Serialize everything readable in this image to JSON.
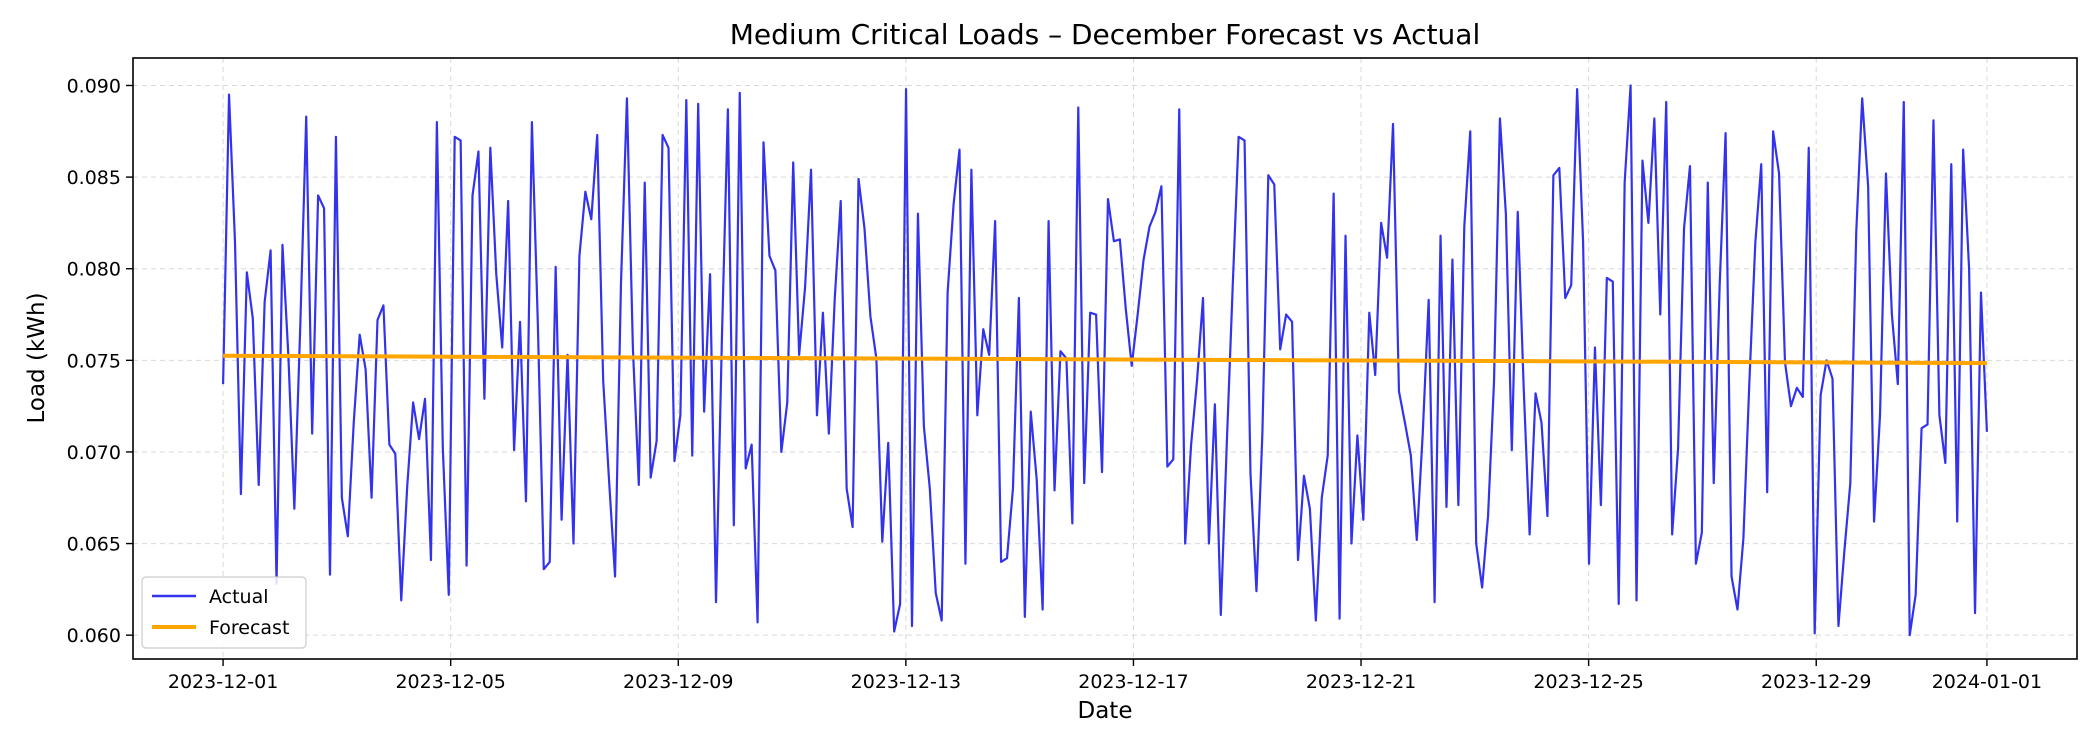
{
  "chart_data": {
    "type": "line",
    "title": "Medium Critical Loads – December Forecast vs Actual",
    "xlabel": "Date",
    "ylabel": "Load (kWh)",
    "x_start": "2023-12-01",
    "x_end": "2024-01-01",
    "xlim": [
      "2023-11-29T10:00",
      "2024-01-02T14:00"
    ],
    "ylim": [
      0.0587,
      0.0915
    ],
    "x_ticks": [
      "2023-12-01",
      "2023-12-05",
      "2023-12-09",
      "2023-12-13",
      "2023-12-17",
      "2023-12-21",
      "2023-12-25",
      "2023-12-29",
      "2024-01-01"
    ],
    "y_ticks": [
      0.06,
      0.065,
      0.07,
      0.075,
      0.08,
      0.085,
      0.09
    ],
    "y_tick_labels": [
      "0.060",
      "0.065",
      "0.070",
      "0.075",
      "0.080",
      "0.085",
      "0.090"
    ],
    "grid": true,
    "legend": "lower-left",
    "series": [
      {
        "name": "Actual",
        "color": "#3333ee",
        "values": [
          0.0737,
          0.0895,
          0.0815,
          0.0677,
          0.0798,
          0.0773,
          0.0682,
          0.0782,
          0.081,
          0.0628,
          0.0813,
          0.0752,
          0.0669,
          0.0769,
          0.0883,
          0.071,
          0.084,
          0.0833,
          0.0633,
          0.0872,
          0.0675,
          0.0654,
          0.0716,
          0.0764,
          0.0745,
          0.0675,
          0.0772,
          0.078,
          0.0704,
          0.0699,
          0.0619,
          0.0681,
          0.0727,
          0.0707,
          0.0729,
          0.0641,
          0.088,
          0.0702,
          0.0622,
          0.0872,
          0.087,
          0.0638,
          0.084,
          0.0864,
          0.0729,
          0.0866,
          0.0797,
          0.0757,
          0.0837,
          0.0701,
          0.0771,
          0.0673,
          0.088,
          0.077,
          0.0636,
          0.064,
          0.0801,
          0.0663,
          0.0753,
          0.065,
          0.0807,
          0.0842,
          0.0827,
          0.0873,
          0.0739,
          0.0684,
          0.0632,
          0.0792,
          0.0893,
          0.0757,
          0.0682,
          0.0847,
          0.0686,
          0.0706,
          0.0873,
          0.0866,
          0.0695,
          0.072,
          0.0892,
          0.0698,
          0.089,
          0.0722,
          0.0797,
          0.0618,
          0.0763,
          0.0887,
          0.066,
          0.0896,
          0.0691,
          0.0704,
          0.0607,
          0.0869,
          0.0807,
          0.0799,
          0.07,
          0.0727,
          0.0858,
          0.0753,
          0.079,
          0.0854,
          0.072,
          0.0776,
          0.071,
          0.0784,
          0.0837,
          0.068,
          0.0659,
          0.0849,
          0.0822,
          0.0774,
          0.0751,
          0.0651,
          0.0705,
          0.0602,
          0.0617,
          0.0898,
          0.0605,
          0.083,
          0.0714,
          0.068,
          0.0623,
          0.0608,
          0.0787,
          0.0835,
          0.0865,
          0.0639,
          0.0854,
          0.072,
          0.0767,
          0.0753,
          0.0826,
          0.064,
          0.0642,
          0.068,
          0.0784,
          0.061,
          0.0722,
          0.0685,
          0.0614,
          0.0826,
          0.0679,
          0.0755,
          0.0751,
          0.0661,
          0.0888,
          0.0683,
          0.0776,
          0.0775,
          0.0689,
          0.0838,
          0.0815,
          0.0816,
          0.0778,
          0.0747,
          0.0775,
          0.0805,
          0.0823,
          0.0831,
          0.0845,
          0.0692,
          0.0696,
          0.0887,
          0.065,
          0.0704,
          0.0739,
          0.0784,
          0.065,
          0.0726,
          0.0611,
          0.0704,
          0.079,
          0.0872,
          0.087,
          0.0688,
          0.0624,
          0.071,
          0.0851,
          0.0846,
          0.0756,
          0.0775,
          0.0771,
          0.0641,
          0.0687,
          0.0669,
          0.0608,
          0.0675,
          0.0698,
          0.0841,
          0.0609,
          0.0818,
          0.065,
          0.0709,
          0.0663,
          0.0776,
          0.0742,
          0.0825,
          0.0806,
          0.0879,
          0.0733,
          0.0716,
          0.0698,
          0.0652,
          0.071,
          0.0783,
          0.0618,
          0.0818,
          0.067,
          0.0805,
          0.0671,
          0.0823,
          0.0875,
          0.065,
          0.0626,
          0.0665,
          0.0738,
          0.0882,
          0.083,
          0.0701,
          0.0831,
          0.0735,
          0.0655,
          0.0732,
          0.0716,
          0.0665,
          0.0851,
          0.0855,
          0.0784,
          0.0791,
          0.0898,
          0.0815,
          0.0639,
          0.0757,
          0.0671,
          0.0795,
          0.0793,
          0.0617,
          0.0847,
          0.09,
          0.0619,
          0.0859,
          0.0825,
          0.0882,
          0.0775,
          0.0891,
          0.0655,
          0.0702,
          0.0822,
          0.0856,
          0.0639,
          0.0656,
          0.0847,
          0.0683,
          0.0791,
          0.0874,
          0.0632,
          0.0614,
          0.0653,
          0.0738,
          0.0814,
          0.0857,
          0.0678,
          0.0875,
          0.0852,
          0.0749,
          0.0725,
          0.0735,
          0.073,
          0.0866,
          0.0601,
          0.0731,
          0.075,
          0.074,
          0.0605,
          0.0646,
          0.0683,
          0.082,
          0.0893,
          0.0845,
          0.0662,
          0.072,
          0.0852,
          0.0775,
          0.0737,
          0.0891,
          0.06,
          0.0622,
          0.0713,
          0.0715,
          0.0881,
          0.072,
          0.0694,
          0.0857,
          0.0662,
          0.0865,
          0.08,
          0.0612,
          0.0787,
          0.0711
        ]
      },
      {
        "name": "Forecast",
        "color": "#ffa500",
        "values": [
          0.07525,
          0.07485
        ]
      }
    ]
  }
}
